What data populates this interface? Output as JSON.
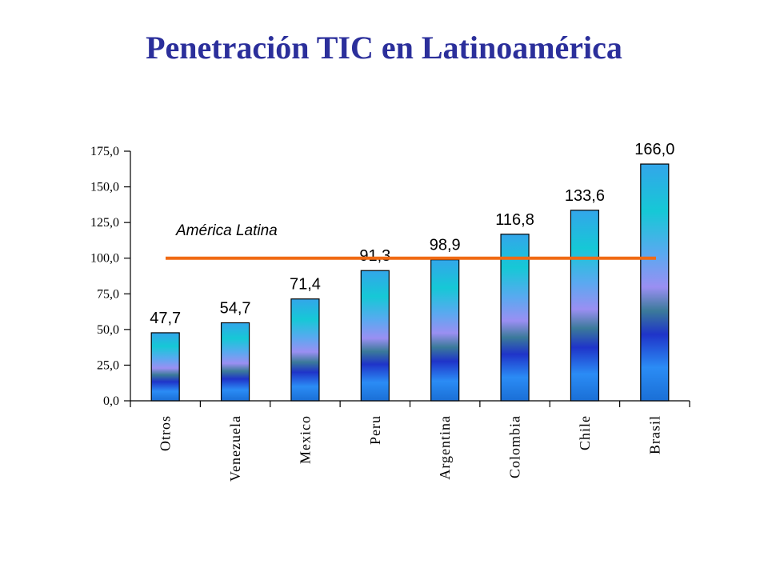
{
  "title": "Penetración TIC en Latinoamérica",
  "chart_data": {
    "type": "bar",
    "categories": [
      "Otros",
      "Venezuela",
      "Mexico",
      "Peru",
      "Argentina",
      "Colombia",
      "Chile",
      "Brasil"
    ],
    "values": [
      47.7,
      54.7,
      71.4,
      91.3,
      98.9,
      116.8,
      133.6,
      166.0
    ],
    "data_labels": [
      "47,7",
      "54,7",
      "71,4",
      "91,3",
      "98,9",
      "116,8",
      "133,6",
      "166,0"
    ],
    "ylim": [
      0,
      175
    ],
    "yticks": [
      0,
      25,
      50,
      75,
      100,
      125,
      150,
      175
    ],
    "ytick_labels": [
      "0,0",
      "25,0",
      "50,0",
      "75,0",
      "100,0",
      "125,0",
      "150,0",
      "175,0"
    ],
    "reference_line": {
      "value": 100,
      "label": "América Latina",
      "color": "#f06a14"
    },
    "xlabel": "",
    "ylabel": "",
    "grid": false,
    "legend": "none"
  }
}
